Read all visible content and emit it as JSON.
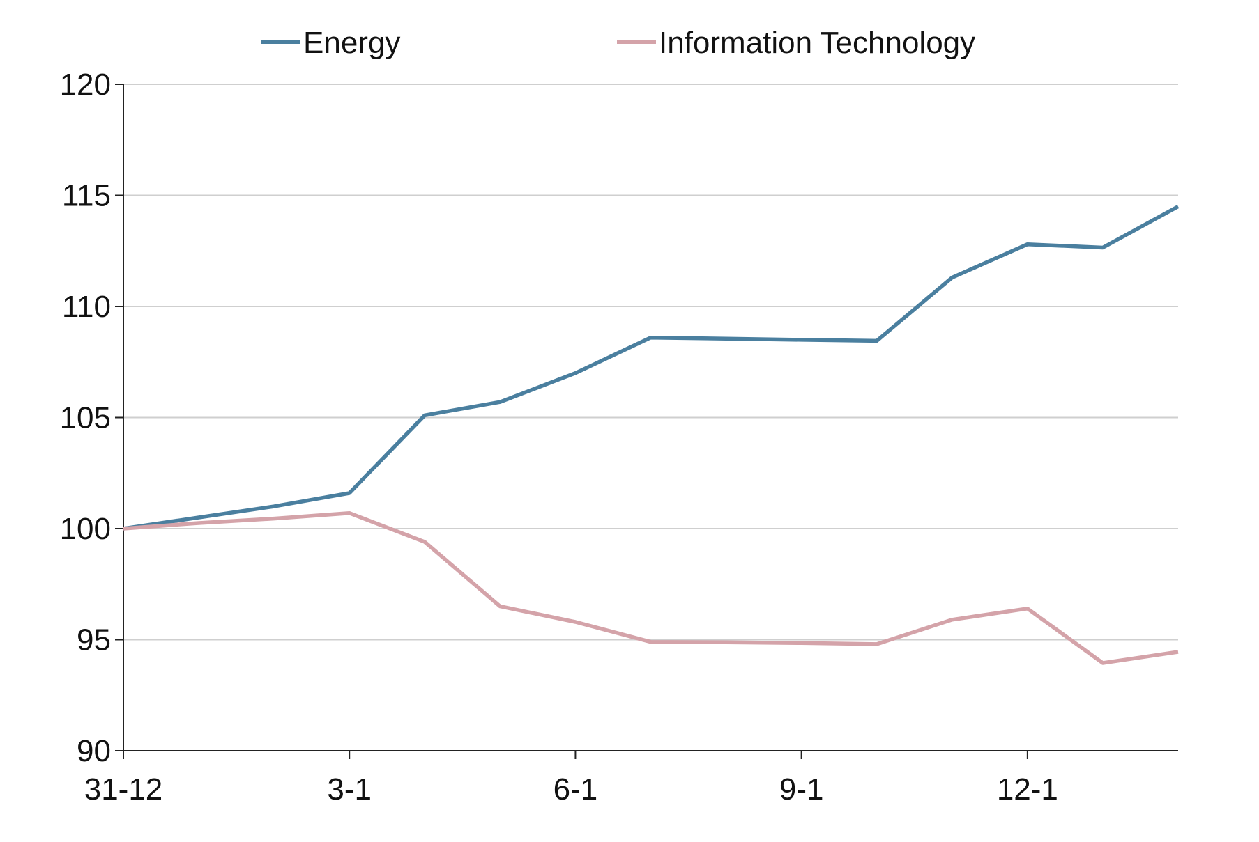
{
  "chart_data": {
    "type": "line",
    "title": "",
    "xlabel": "",
    "ylabel": "",
    "x": [
      "31-12",
      "",
      "",
      "3-1",
      "",
      "",
      "6-1",
      "",
      "",
      "9-1",
      "",
      "",
      "12-1",
      "",
      ""
    ],
    "x_tick_labels": [
      "31-12",
      "3-1",
      "6-1",
      "9-1",
      "12-1"
    ],
    "y_tick_labels": [
      "90",
      "95",
      "100",
      "105",
      "110",
      "115",
      "120"
    ],
    "ylim": [
      90,
      120
    ],
    "grid": "horizontal",
    "legend_position": "top",
    "series": [
      {
        "name": "Energy",
        "color": "#4a7f9f",
        "values": [
          100.0,
          100.5,
          101.0,
          101.6,
          105.1,
          105.7,
          107.0,
          108.6,
          108.55,
          108.5,
          108.45,
          111.3,
          112.8,
          112.65,
          114.5
        ]
      },
      {
        "name": "Information Technology",
        "color": "#d4a3a9",
        "values": [
          100.0,
          100.25,
          100.45,
          100.7,
          99.4,
          96.5,
          95.8,
          94.9,
          94.88,
          94.85,
          94.8,
          95.9,
          96.4,
          93.95,
          94.45
        ]
      }
    ]
  }
}
